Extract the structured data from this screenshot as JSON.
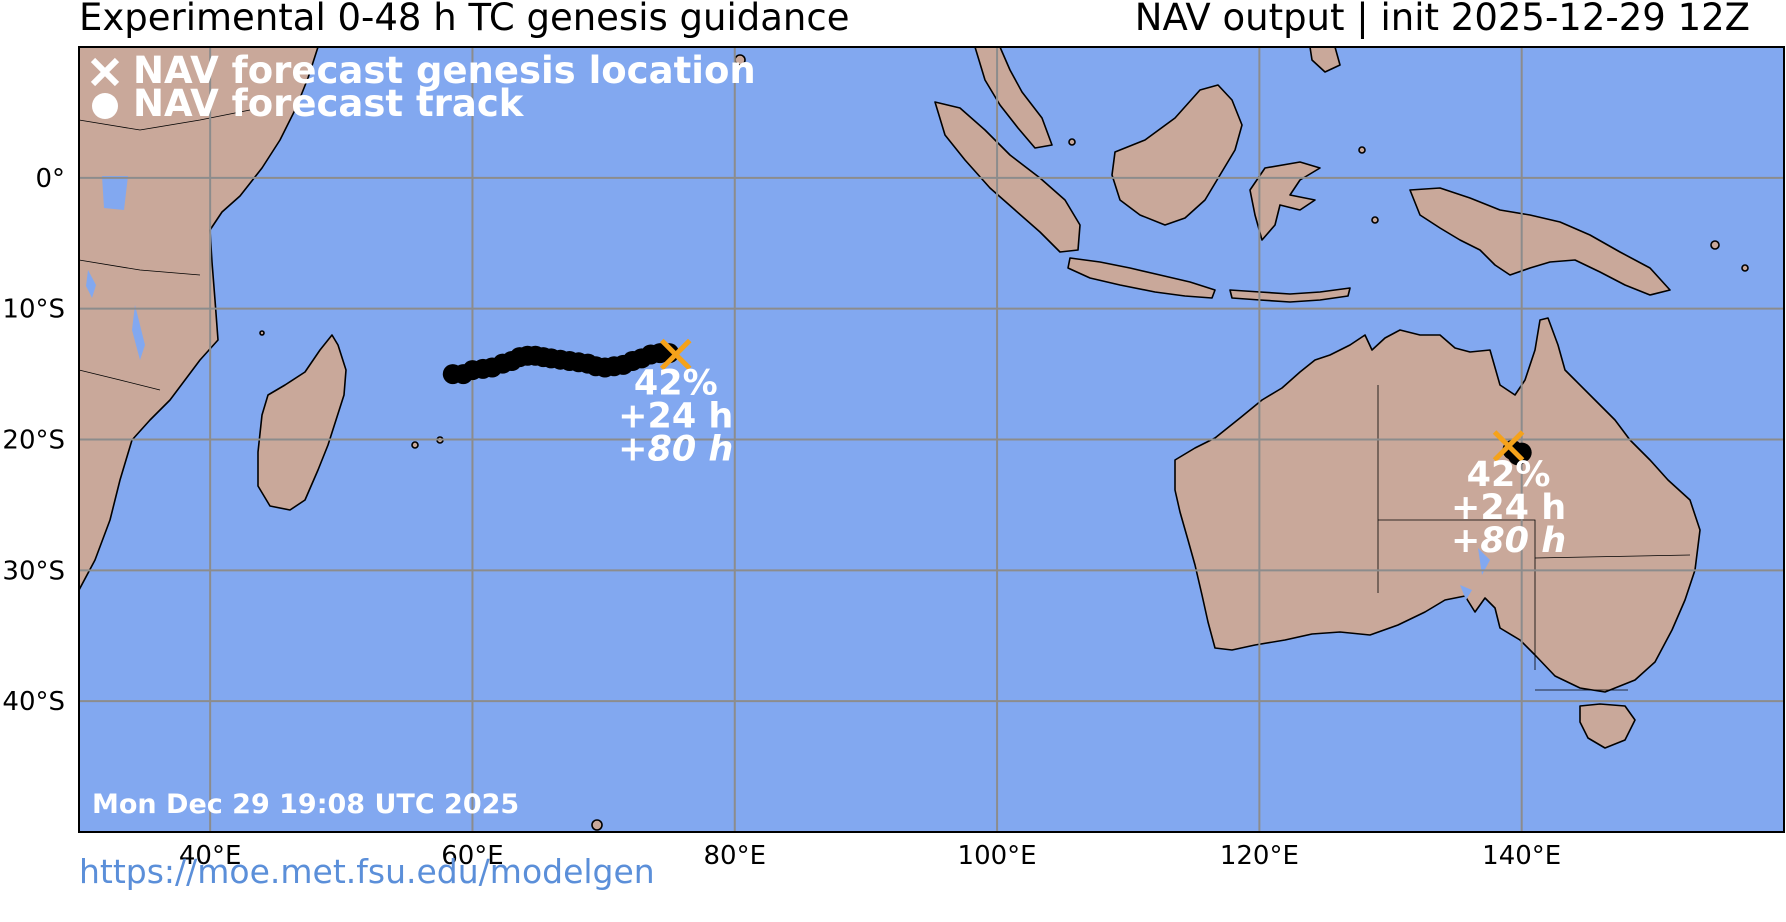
{
  "header": {
    "title_left": "Experimental 0-48 h TC genesis guidance",
    "title_right": "NAV output | init 2025-12-29 12Z"
  },
  "legend": {
    "genesis_label": "NAV forecast genesis location",
    "track_label": "NAV forecast track",
    "genesis_icon": "x-marker-icon",
    "track_icon": "circle-marker-icon"
  },
  "timestamp": "Mon Dec 29 19:08 UTC 2025",
  "footer": {
    "url": "https://moe.met.fsu.edu/modelgen"
  },
  "map": {
    "extent": {
      "lon_min": 30,
      "lon_max": 160,
      "lat_min": -50,
      "lat_max": 10
    },
    "lon_ticks": [
      {
        "value": 40,
        "label": "40°E"
      },
      {
        "value": 60,
        "label": "60°E"
      },
      {
        "value": 80,
        "label": "80°E"
      },
      {
        "value": 100,
        "label": "100°E"
      },
      {
        "value": 120,
        "label": "120°E"
      },
      {
        "value": 140,
        "label": "140°E"
      }
    ],
    "lat_ticks": [
      {
        "value": 0,
        "label": "0°"
      },
      {
        "value": -10,
        "label": "10°S"
      },
      {
        "value": -20,
        "label": "20°S"
      },
      {
        "value": -30,
        "label": "30°S"
      },
      {
        "value": -40,
        "label": "40°S"
      }
    ],
    "colors": {
      "ocean": "#82a8f0",
      "land": "#c9a89a",
      "grid": "#8c8c8c",
      "genesis_marker": "#f5a21a",
      "track": "#000000",
      "label_text": "#ffffff",
      "lakes": "#82a8f0"
    }
  },
  "systems": [
    {
      "genesis": {
        "lon": 75.5,
        "lat": -13.5
      },
      "probability": "42%",
      "lead": "+24 h",
      "duration": "+80 h",
      "track": [
        {
          "lon": 58.5,
          "lat": -15.0
        },
        {
          "lon": 59.3,
          "lat": -15.0
        },
        {
          "lon": 60.0,
          "lat": -14.7
        },
        {
          "lon": 60.8,
          "lat": -14.6
        },
        {
          "lon": 61.5,
          "lat": -14.5
        },
        {
          "lon": 62.3,
          "lat": -14.2
        },
        {
          "lon": 63.0,
          "lat": -14.0
        },
        {
          "lon": 63.6,
          "lat": -13.7
        },
        {
          "lon": 64.2,
          "lat": -13.6
        },
        {
          "lon": 64.8,
          "lat": -13.6
        },
        {
          "lon": 65.4,
          "lat": -13.7
        },
        {
          "lon": 66.0,
          "lat": -13.8
        },
        {
          "lon": 66.7,
          "lat": -13.9
        },
        {
          "lon": 67.4,
          "lat": -14.0
        },
        {
          "lon": 68.1,
          "lat": -14.1
        },
        {
          "lon": 68.8,
          "lat": -14.2
        },
        {
          "lon": 69.4,
          "lat": -14.4
        },
        {
          "lon": 70.1,
          "lat": -14.5
        },
        {
          "lon": 70.8,
          "lat": -14.4
        },
        {
          "lon": 71.5,
          "lat": -14.3
        },
        {
          "lon": 72.2,
          "lat": -14.0
        },
        {
          "lon": 72.9,
          "lat": -13.8
        },
        {
          "lon": 73.6,
          "lat": -13.5
        },
        {
          "lon": 74.3,
          "lat": -13.4
        },
        {
          "lon": 75.0,
          "lat": -13.4
        }
      ]
    },
    {
      "genesis": {
        "lon": 139.0,
        "lat": -20.5
      },
      "probability": "42%",
      "lead": "+24 h",
      "duration": "+80 h",
      "track": [
        {
          "lon": 139.3,
          "lat": -20.8
        },
        {
          "lon": 139.7,
          "lat": -21.2
        },
        {
          "lon": 140.0,
          "lat": -21.0
        }
      ]
    }
  ]
}
